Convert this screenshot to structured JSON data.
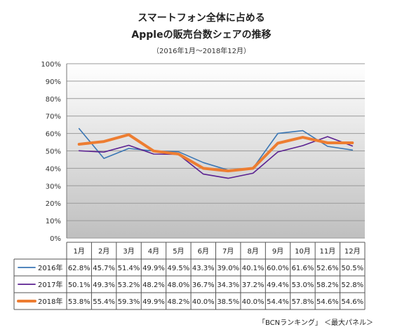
{
  "chart_data": {
    "type": "line",
    "title_line1": "スマートフォン全体に占める",
    "title_line2": "Appleの販売台数シェアの推移",
    "subtitle": "（2016年1月～2018年12月）",
    "categories": [
      "1月",
      "2月",
      "3月",
      "4月",
      "5月",
      "6月",
      "7月",
      "8月",
      "9月",
      "10月",
      "11月",
      "12月"
    ],
    "ylim": [
      0,
      100
    ],
    "yticks": [
      0,
      10,
      20,
      30,
      40,
      50,
      60,
      70,
      80,
      90,
      100
    ],
    "ytick_labels": [
      "0%",
      "10%",
      "20%",
      "30%",
      "40%",
      "50%",
      "60%",
      "70%",
      "80%",
      "90%",
      "100%"
    ],
    "grid": true,
    "legend": "data-table",
    "series": [
      {
        "name": "2016年",
        "color": "#3a76b4",
        "values": [
          62.8,
          45.7,
          51.4,
          49.9,
          49.5,
          43.3,
          39.0,
          40.1,
          60.0,
          61.6,
          52.6,
          50.5
        ],
        "labels": [
          "62.8%",
          "45.7%",
          "51.4%",
          "49.9%",
          "49.5%",
          "43.3%",
          "39.0%",
          "40.1%",
          "60.0%",
          "61.6%",
          "52.6%",
          "50.5%"
        ]
      },
      {
        "name": "2017年",
        "color": "#5b2191",
        "values": [
          50.1,
          49.3,
          53.2,
          48.2,
          48.0,
          36.7,
          34.3,
          37.2,
          49.4,
          53.0,
          58.2,
          52.8
        ],
        "labels": [
          "50.1%",
          "49.3%",
          "53.2%",
          "48.2%",
          "48.0%",
          "36.7%",
          "34.3%",
          "37.2%",
          "49.4%",
          "53.0%",
          "58.2%",
          "52.8%"
        ]
      },
      {
        "name": "2018年",
        "color": "#ed7d31",
        "values": [
          53.8,
          55.4,
          59.3,
          49.9,
          48.2,
          40.0,
          38.5,
          40.0,
          54.4,
          57.8,
          54.6,
          54.6
        ],
        "labels": [
          "53.8%",
          "55.4%",
          "59.3%",
          "49.9%",
          "48.2%",
          "40.0%",
          "38.5%",
          "40.0%",
          "54.4%",
          "57.8%",
          "54.6%",
          "54.6%"
        ]
      }
    ]
  },
  "source": "「BCNランキング」 ＜最大パネル＞"
}
